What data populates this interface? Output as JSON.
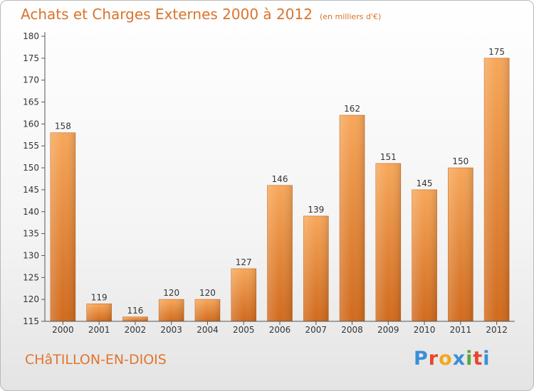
{
  "page": {
    "title": "Achats et Charges Externes 2000 à 2012",
    "subtitle": "(en milliers d'€)",
    "commune": "CHâTILLON-EN-DIOIS",
    "logo_text": "Proxiti",
    "logo_colors": [
      "#3a8fd6",
      "#e8452c",
      "#f2a81d",
      "#3a8fd6",
      "#5aa83a",
      "#e8452c",
      "#3a8fd6"
    ]
  },
  "colors": {
    "title": "#d9742b",
    "bar_top": "#f7a75a",
    "bar_bottom": "#d06a1d",
    "axis": "#555555",
    "label": "#333333"
  },
  "chart_data": {
    "type": "bar",
    "title": "Achats et Charges Externes 2000 à 2012",
    "subtitle": "(en milliers d'€)",
    "categories": [
      "2000",
      "2001",
      "2002",
      "2003",
      "2004",
      "2005",
      "2006",
      "2007",
      "2008",
      "2009",
      "2010",
      "2011",
      "2012"
    ],
    "values": [
      158,
      119,
      116,
      120,
      120,
      127,
      146,
      139,
      162,
      151,
      145,
      150,
      175
    ],
    "ylim": [
      115,
      180
    ],
    "yticks": [
      115,
      120,
      125,
      130,
      135,
      140,
      145,
      150,
      155,
      160,
      165,
      170,
      175,
      180
    ],
    "grid": false,
    "legend": "none"
  }
}
